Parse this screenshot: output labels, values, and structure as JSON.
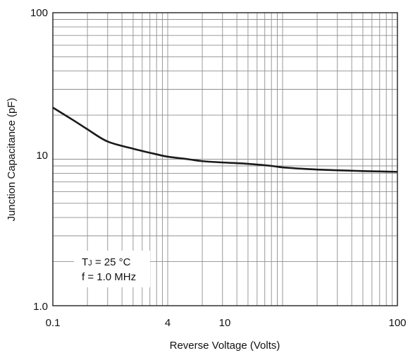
{
  "chart_data": {
    "type": "line",
    "title": "",
    "xlabel": "Reverse Voltage (Volts)",
    "ylabel": "Junction Capacitance (pF)",
    "xscale": "log",
    "yscale": "log",
    "xlim": [
      0.1,
      100
    ],
    "ylim": [
      1.0,
      100
    ],
    "grid": true,
    "x_tick_labels": [
      "0.1",
      "4",
      "10",
      "100"
    ],
    "y_tick_labels": [
      "1.0",
      "10",
      "100"
    ],
    "annotation": {
      "line1_main": "T",
      "line1_sub": "J",
      "line1_rest": " = 25 °C",
      "line2": "f = 1.0 MHz"
    },
    "series": [
      {
        "x": [
          0.1,
          0.15,
          0.2,
          0.3,
          0.5,
          0.8,
          1.0,
          1.5,
          2.0,
          3.0,
          5.0,
          8.0,
          10.0,
          15.0,
          20.0,
          30.0,
          50.0,
          70.0,
          100.0
        ],
        "y": [
          22.5,
          18.5,
          16.0,
          13.2,
          11.8,
          10.8,
          10.4,
          10.0,
          9.7,
          9.5,
          9.3,
          9.0,
          8.8,
          8.6,
          8.5,
          8.4,
          8.3,
          8.25,
          8.2
        ]
      }
    ]
  }
}
